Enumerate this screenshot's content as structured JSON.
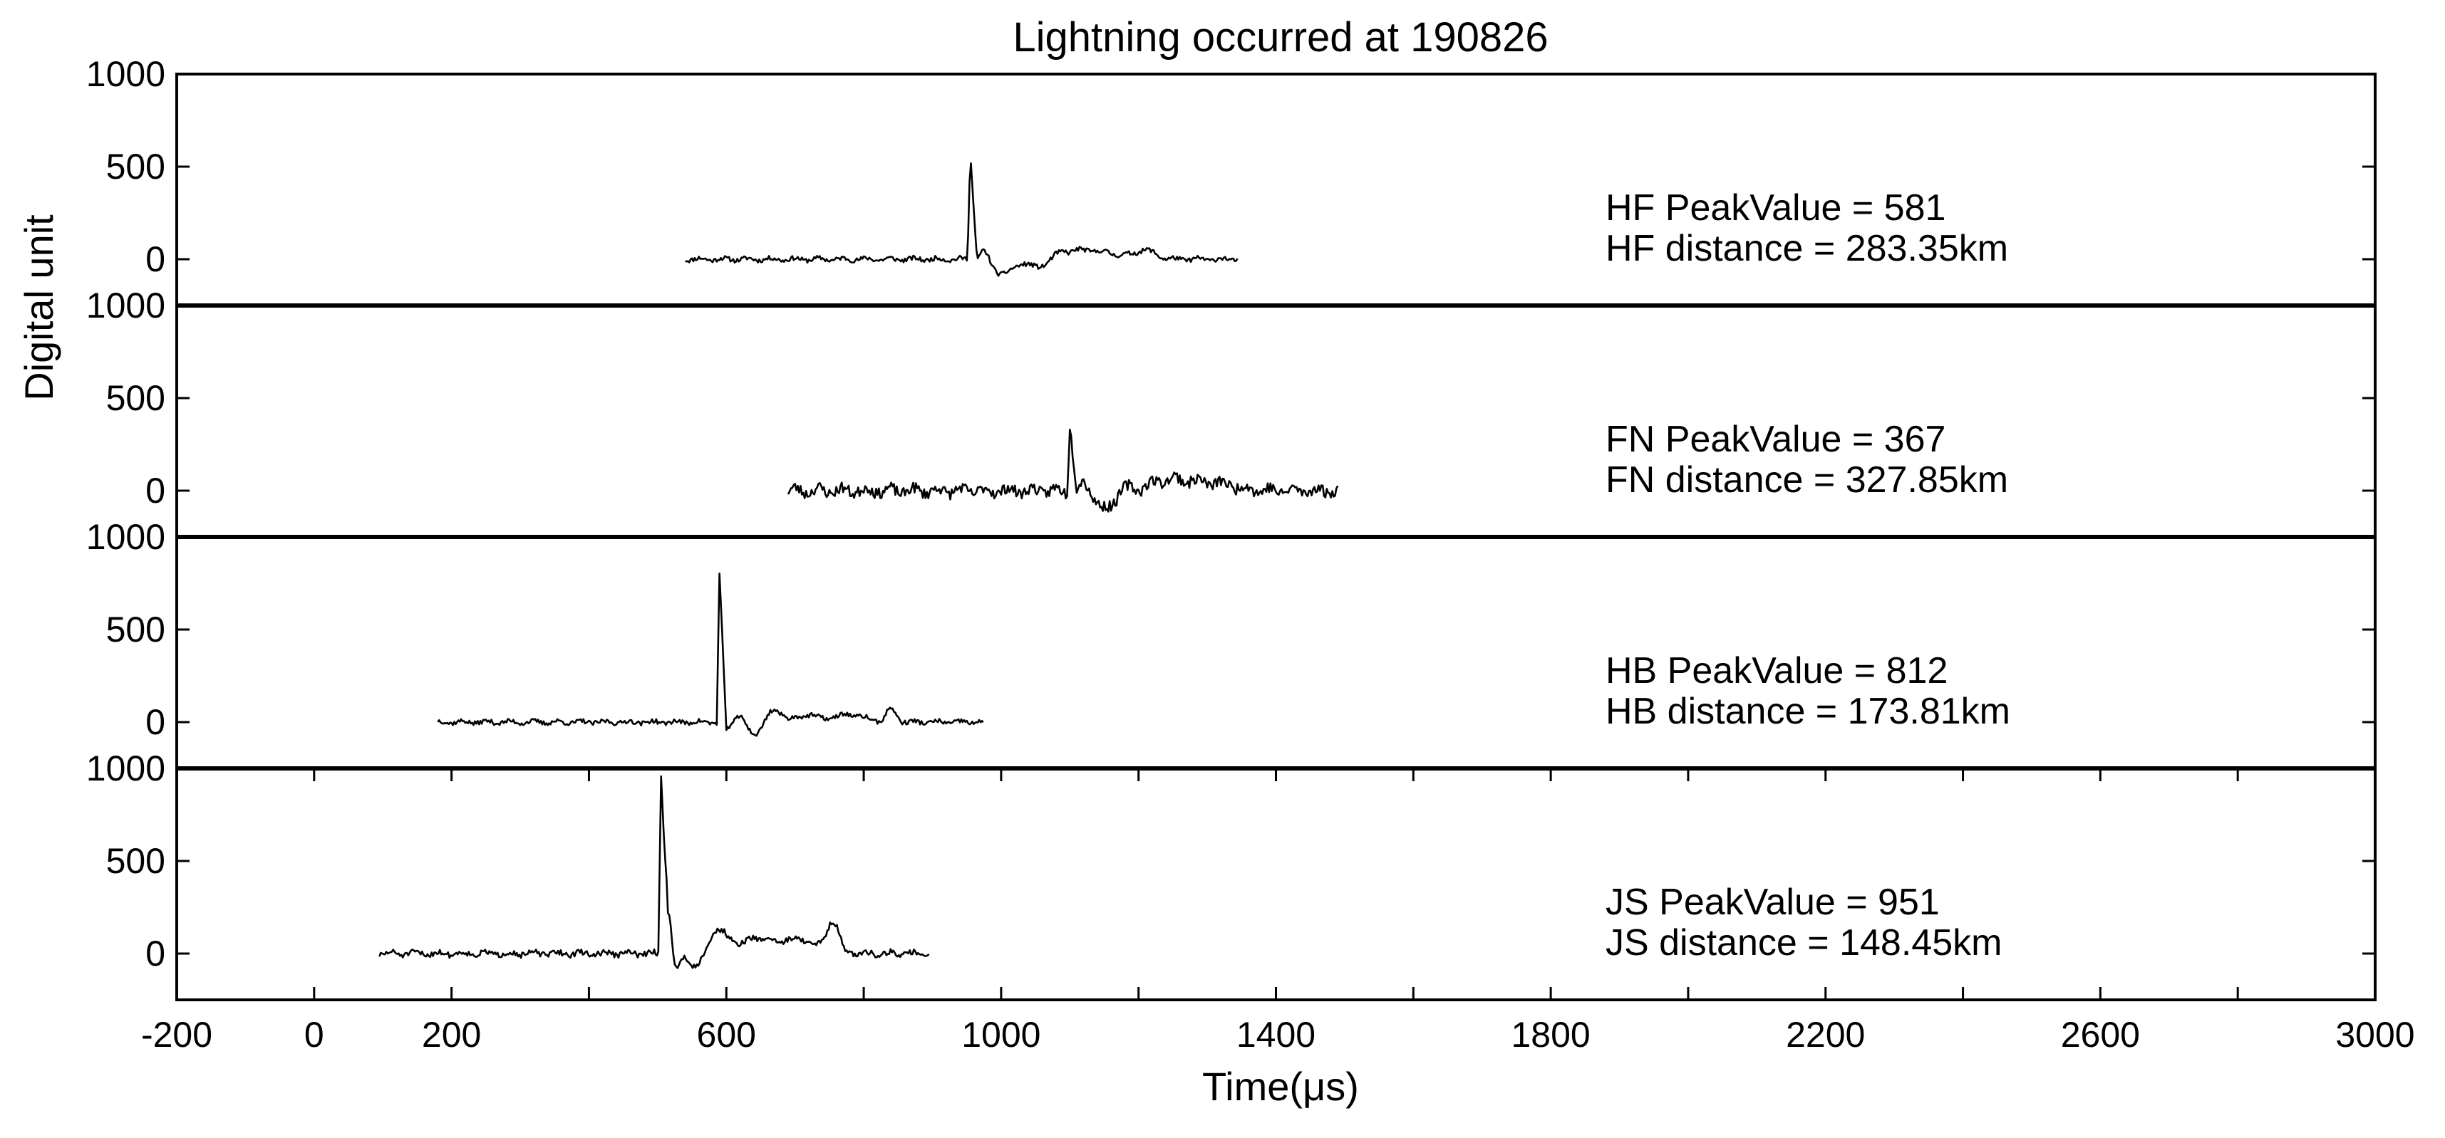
{
  "chart_data": {
    "type": "line",
    "title": "Lightning occurred at 190826",
    "xlabel": "Time(μs)",
    "ylabel": "Digital unit",
    "xlim": [
      -200,
      3000
    ],
    "ylim": [
      -250,
      1000
    ],
    "x_ticks": [
      -200,
      0,
      200,
      600,
      1000,
      1400,
      1800,
      2200,
      2600,
      3000
    ],
    "x_ticks_minor": [
      400,
      800,
      1200,
      1600,
      2000,
      2400,
      2800
    ],
    "y_ticks": [
      0,
      500,
      1000
    ],
    "panels": [
      {
        "station": "HF",
        "peak_value": 581,
        "distance_km": 283.35,
        "annotation_peak": "HF   PeakValue = 581",
        "annotation_distance": "HF distance = 283.35km",
        "waveform": {
          "start": 540,
          "end": 1345,
          "peak_time": 955,
          "peak": 581,
          "noise": 12,
          "seed": 11,
          "features": [
            [
              1120,
              50,
              60
            ],
            [
              1210,
              45,
              20
            ],
            [
              985,
              -80,
              15
            ],
            [
              1040,
              -60,
              30
            ]
          ]
        }
      },
      {
        "station": "FN",
        "peak_value": 367,
        "distance_km": 327.85,
        "annotation_peak": "FN   PeakValue = 367",
        "annotation_distance": "FN distance = 327.85km",
        "waveform": {
          "start": 690,
          "end": 1490,
          "peak_time": 1100,
          "peak": 367,
          "noise": 30,
          "seed": 23,
          "features": [
            [
              1250,
              60,
              50
            ],
            [
              1150,
              -70,
              25
            ],
            [
              1320,
              30,
              40
            ]
          ]
        }
      },
      {
        "station": "HB",
        "peak_value": 812,
        "distance_km": 173.81,
        "annotation_peak": "HB   PeakValue = 812",
        "annotation_distance": "HB distance = 173.81km",
        "waveform": {
          "start": 180,
          "end": 975,
          "peak_time": 590,
          "peak": 812,
          "noise": 12,
          "seed": 37,
          "features": [
            [
              610,
              -120,
              12
            ],
            [
              700,
              40,
              40
            ],
            [
              780,
              40,
              30
            ],
            [
              840,
              70,
              10
            ]
          ]
        }
      },
      {
        "station": "JS",
        "peak_value": 951,
        "distance_km": 148.45,
        "annotation_peak": "JS   PeakValue = 951",
        "annotation_distance": "JS distance = 148.45km",
        "waveform": {
          "start": 95,
          "end": 895,
          "peak_time": 505,
          "peak": 951,
          "noise": 15,
          "seed": 51,
          "features": [
            [
              515,
              260,
              6
            ],
            [
              528,
              -240,
              10
            ],
            [
              600,
              100,
              30
            ],
            [
              700,
              80,
              40
            ],
            [
              755,
              170,
              12
            ],
            [
              650,
              60,
              20
            ]
          ]
        }
      }
    ]
  }
}
